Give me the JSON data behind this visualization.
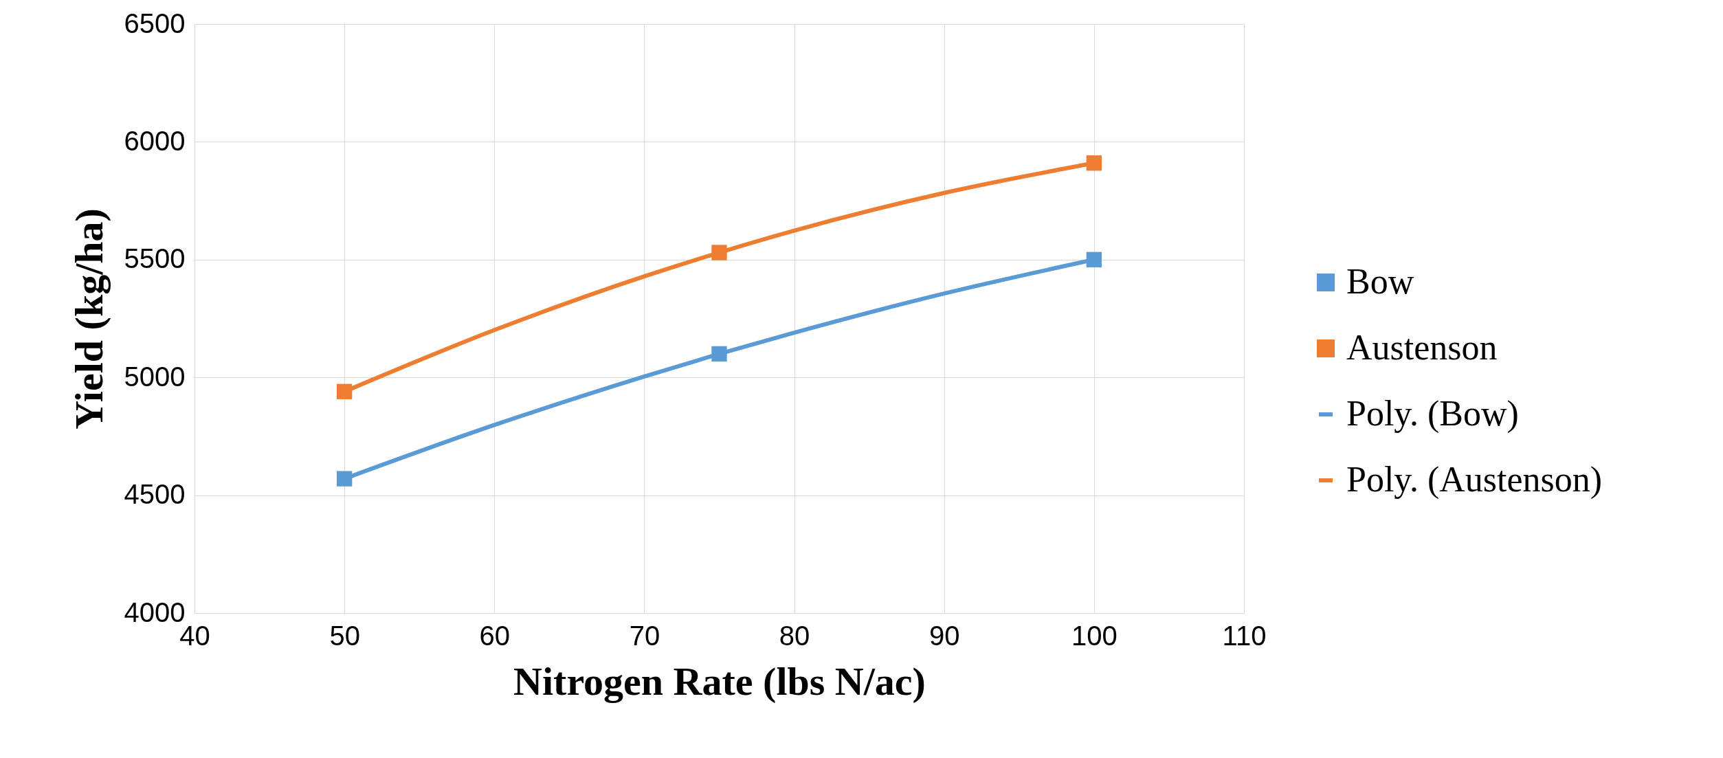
{
  "chart_data": {
    "type": "scatter",
    "xlabel": "Nitrogen Rate (lbs N/ac)",
    "ylabel": "Yield (kg/ha)",
    "x": [
      50,
      75,
      100
    ],
    "series": [
      {
        "name": "Bow",
        "color": "#5b9bd5",
        "marker": "square",
        "values": [
          4570,
          5100,
          5500
        ]
      },
      {
        "name": "Austenson",
        "color": "#ed7d31",
        "marker": "square",
        "values": [
          4940,
          5530,
          5910
        ]
      },
      {
        "name": "Poly. (Bow)",
        "type": "line",
        "color": "#5b9bd5",
        "x": [
          50,
          60,
          70,
          75,
          80,
          90,
          100
        ],
        "values": [
          4570,
          4798,
          5004,
          5100,
          5190,
          5356,
          5500
        ]
      },
      {
        "name": "Poly. (Austenson)",
        "type": "line",
        "color": "#ed7d31",
        "x": [
          50,
          60,
          70,
          75,
          80,
          90,
          100
        ],
        "values": [
          4940,
          5201,
          5429,
          5530,
          5623,
          5783,
          5910
        ]
      }
    ],
    "xlim": [
      40,
      110
    ],
    "xticks": [
      40,
      50,
      60,
      70,
      80,
      90,
      100,
      110
    ],
    "ylim": [
      4000,
      6500
    ],
    "yticks": [
      4000,
      4500,
      5000,
      5500,
      6000,
      6500
    ],
    "grid": true,
    "legend": "right",
    "line_style": "solid"
  }
}
